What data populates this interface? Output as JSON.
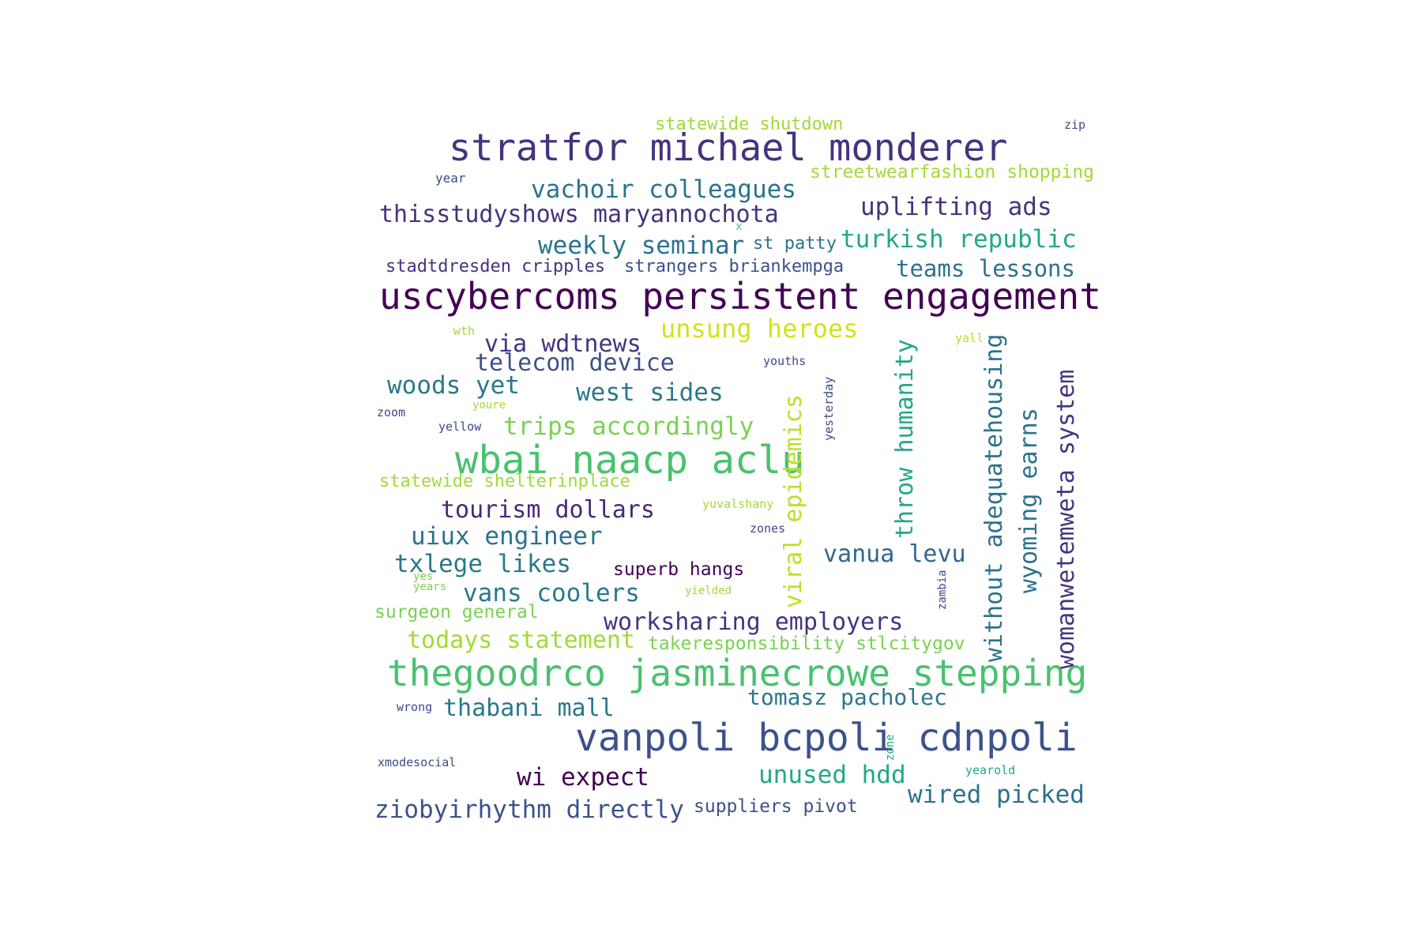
{
  "words": [
    {
      "text": "stratfor michael monderer",
      "color": "#46337e"
    },
    {
      "text": "uscybercoms persistent engagement",
      "color": "#440154"
    },
    {
      "text": "thegoodrco jasminecrowe stepping",
      "color": "#4ac16d"
    },
    {
      "text": "vanpoli bcpoli cdnpoli",
      "color": "#3b528b"
    },
    {
      "text": "wbai naacp aclu",
      "color": "#4ac16d"
    },
    {
      "text": "statewide shutdown",
      "color": "#a2da37"
    },
    {
      "text": "zip",
      "color": "#3e4989"
    },
    {
      "text": "streetwearfashion shopping",
      "color": "#a2da37"
    },
    {
      "text": "year",
      "color": "#3e4989"
    },
    {
      "text": "vachoir colleagues",
      "color": "#2c728e"
    },
    {
      "text": "uplifting ads",
      "color": "#46337e"
    },
    {
      "text": "thisstudyshows maryannochota",
      "color": "#46337e"
    },
    {
      "text": "x",
      "color": "#4ac16d"
    },
    {
      "text": "weekly seminar",
      "color": "#2c728e"
    },
    {
      "text": "st patty",
      "color": "#2c728e"
    },
    {
      "text": "turkish republic",
      "color": "#22a884"
    },
    {
      "text": "stadtdresden cripples",
      "color": "#46337e"
    },
    {
      "text": "strangers briankempga",
      "color": "#3b528b"
    },
    {
      "text": "teams lessons",
      "color": "#2c728e"
    },
    {
      "text": "wth",
      "color": "#a2da37"
    },
    {
      "text": "unsung heroes",
      "color": "#d2e21b"
    },
    {
      "text": "yall",
      "color": "#b5de2b"
    },
    {
      "text": "via wdtnews",
      "color": "#46337e"
    },
    {
      "text": "telecom device",
      "color": "#3b528b"
    },
    {
      "text": "youths",
      "color": "#3e4989"
    },
    {
      "text": "woods yet",
      "color": "#2a788e"
    },
    {
      "text": "west sides",
      "color": "#2a788e"
    },
    {
      "text": "youre",
      "color": "#a2da37"
    },
    {
      "text": "zoom",
      "color": "#3e4989"
    },
    {
      "text": "yellow",
      "color": "#3e4989"
    },
    {
      "text": "trips accordingly",
      "color": "#7ad151"
    },
    {
      "text": "statewide shelterinplace",
      "color": "#a2da37"
    },
    {
      "text": "tourism dollars",
      "color": "#482878"
    },
    {
      "text": "yuvalshany",
      "color": "#a2da37"
    },
    {
      "text": "zones",
      "color": "#3e4989"
    },
    {
      "text": "uiux engineer",
      "color": "#2c728e"
    },
    {
      "text": "txlege likes",
      "color": "#2a788e"
    },
    {
      "text": "superb hangs",
      "color": "#440154"
    },
    {
      "text": "vanua levu",
      "color": "#31688e"
    },
    {
      "text": "yes",
      "color": "#7ad151"
    },
    {
      "text": "years",
      "color": "#7ad151"
    },
    {
      "text": "vans coolers",
      "color": "#2a788e"
    },
    {
      "text": "yielded",
      "color": "#a2da37"
    },
    {
      "text": "surgeon general",
      "color": "#7ad151"
    },
    {
      "text": "worksharing employers",
      "color": "#46337e"
    },
    {
      "text": "todays statement",
      "color": "#a2da37"
    },
    {
      "text": "takeresponsibility stlcitygov",
      "color": "#7ad151"
    },
    {
      "text": "wrong",
      "color": "#3e4989"
    },
    {
      "text": "thabani mall",
      "color": "#2a788e"
    },
    {
      "text": "tomasz pacholec",
      "color": "#2a788e"
    },
    {
      "text": "xmodesocial",
      "color": "#3e4989"
    },
    {
      "text": "yearold",
      "color": "#22a884"
    },
    {
      "text": "wi expect",
      "color": "#440154"
    },
    {
      "text": "unused hdd",
      "color": "#22a884"
    },
    {
      "text": "ziobyirhythm directly",
      "color": "#3b528b"
    },
    {
      "text": "suppliers pivot",
      "color": "#3b528b"
    },
    {
      "text": "wired picked",
      "color": "#2c728e"
    },
    {
      "text": "viral epidemics",
      "color": "#bddf26"
    },
    {
      "text": "yesterday",
      "color": "#3e4989"
    },
    {
      "text": "throw humanity",
      "color": "#22a884"
    },
    {
      "text": "without adequatehousing",
      "color": "#2c728e"
    },
    {
      "text": "wyoming earns",
      "color": "#2c728e"
    },
    {
      "text": "womanwetemweta system",
      "color": "#46337e"
    },
    {
      "text": "zambia",
      "color": "#3e4989"
    },
    {
      "text": "zone",
      "color": "#22a884"
    }
  ]
}
